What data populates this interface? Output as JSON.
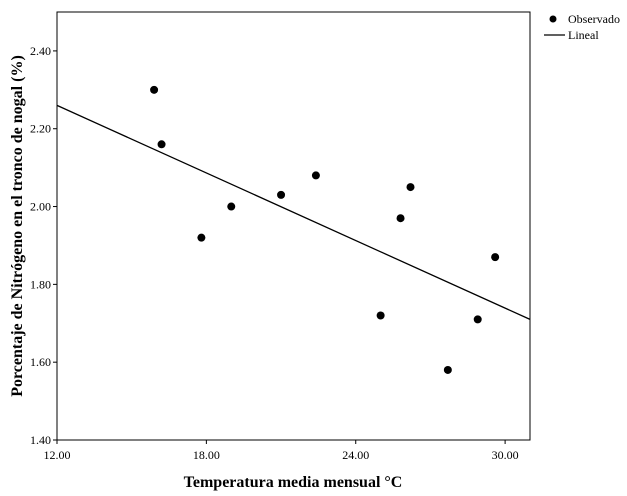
{
  "chart_data": {
    "type": "scatter",
    "xlabel": "Temperatura media mensual °C",
    "ylabel": "Porcentaje de Nitrógeno en el tronco de nogal (%)",
    "xlim": [
      12.0,
      31.0
    ],
    "ylim": [
      1.4,
      2.5
    ],
    "x_ticks": [
      "12.00",
      "18.00",
      "24.00",
      "30.00"
    ],
    "y_ticks": [
      "1.40",
      "1.60",
      "1.80",
      "2.00",
      "2.20",
      "2.40"
    ],
    "x_tick_values": [
      12,
      18,
      24,
      30
    ],
    "y_tick_values": [
      1.4,
      1.6,
      1.8,
      2.0,
      2.2,
      2.4
    ],
    "points": [
      {
        "x": 15.9,
        "y": 2.3
      },
      {
        "x": 16.2,
        "y": 2.16
      },
      {
        "x": 17.8,
        "y": 1.92
      },
      {
        "x": 19.0,
        "y": 2.0
      },
      {
        "x": 21.0,
        "y": 2.03
      },
      {
        "x": 22.4,
        "y": 2.08
      },
      {
        "x": 25.0,
        "y": 1.72
      },
      {
        "x": 25.8,
        "y": 1.97
      },
      {
        "x": 26.2,
        "y": 2.05
      },
      {
        "x": 27.7,
        "y": 1.58
      },
      {
        "x": 28.9,
        "y": 1.71
      },
      {
        "x": 29.6,
        "y": 1.87
      }
    ],
    "fit_line": {
      "x": [
        12.0,
        31.0
      ],
      "y": [
        2.26,
        1.71
      ]
    },
    "legend": [
      {
        "label": "Observado",
        "marker": "dot"
      },
      {
        "label": "Lineal",
        "marker": "line"
      }
    ],
    "legend_position": "top-right",
    "grid": false,
    "colors": {
      "points": "#000000",
      "line": "#000000",
      "background": "#ffffff"
    }
  }
}
